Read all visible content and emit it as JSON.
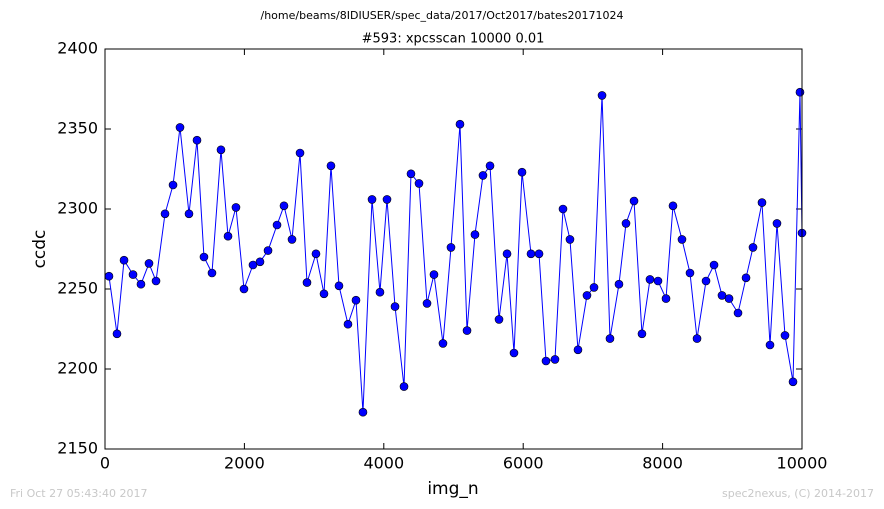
{
  "chart_data": {
    "type": "line",
    "suptitle": "/home/beams/8IDIUSER/spec_data/2017/Oct2017/bates20171024",
    "title": "#593: xpcsscan 10000 0.01",
    "x_label": "img_n",
    "y_label": "ccdc",
    "footer_left": "Fri Oct 27 05:43:40 2017",
    "footer_right": "spec2nexus, (C) 2014-2017",
    "color": "#0000ff",
    "marker": "circle",
    "x": [
      57,
      172,
      273,
      402,
      516,
      631,
      732,
      861,
      976,
      1076,
      1205,
      1320,
      1420,
      1535,
      1664,
      1765,
      1879,
      1994,
      2123,
      2224,
      2339,
      2468,
      2568,
      2683,
      2798,
      2898,
      3027,
      3142,
      3242,
      3357,
      3486,
      3601,
      3701,
      3831,
      3945,
      4046,
      4161,
      4290,
      4390,
      4505,
      4620,
      4720,
      4849,
      4964,
      5093,
      5194,
      5308,
      5423,
      5524,
      5653,
      5768,
      5868,
      5983,
      6112,
      6227,
      6327,
      6456,
      6571,
      6671,
      6786,
      6915,
      7016,
      7131,
      7245,
      7374,
      7475,
      7590,
      7704,
      7819,
      7934,
      8049,
      8149,
      8278,
      8393,
      8494,
      8623,
      8738,
      8852,
      8953,
      9082,
      9197,
      9297,
      9426,
      9541,
      9641,
      9756,
      9871,
      9971,
      10000
    ],
    "values": [
      2258,
      2222,
      2268,
      2259,
      2253,
      2266,
      2255,
      2297,
      2315,
      2351,
      2297,
      2343,
      2270,
      2260,
      2337,
      2283,
      2301,
      2250,
      2265,
      2267,
      2274,
      2290,
      2302,
      2281,
      2335,
      2254,
      2272,
      2247,
      2327,
      2252,
      2228,
      2243,
      2173,
      2306,
      2248,
      2306,
      2239,
      2189,
      2322,
      2316,
      2241,
      2259,
      2216,
      2276,
      2353,
      2224,
      2284,
      2321,
      2327,
      2231,
      2272,
      2210,
      2323,
      2272,
      2272,
      2205,
      2206,
      2300,
      2281,
      2212,
      2246,
      2251,
      2371,
      2219,
      2253,
      2291,
      2305,
      2222,
      2256,
      2255,
      2244,
      2302,
      2281,
      2260,
      2219,
      2255,
      2265,
      2246,
      2244,
      2235,
      2257,
      2276,
      2304,
      2215,
      2291,
      2221,
      2192,
      2373,
      2285
    ],
    "xlim": [
      0,
      10000
    ],
    "xticks": [
      0,
      2000,
      4000,
      6000,
      8000,
      10000
    ],
    "ylim": [
      2150,
      2400
    ],
    "yticks": [
      2150,
      2200,
      2250,
      2300,
      2350,
      2400
    ],
    "grid": false
  }
}
